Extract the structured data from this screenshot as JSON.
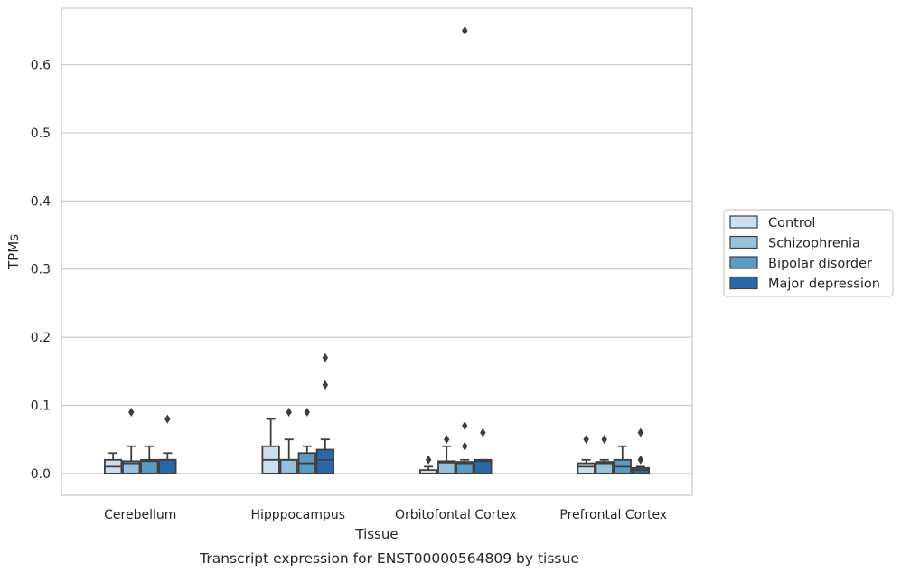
{
  "chart_data": {
    "type": "box",
    "title": "",
    "caption": "Transcript expression for ENST00000564809 by tissue",
    "xlabel": "Tissue",
    "ylabel": "TPMs",
    "ylim": [
      -0.032,
      0.683
    ],
    "yticks": [
      0.0,
      0.1,
      0.2,
      0.3,
      0.4,
      0.5,
      0.6
    ],
    "ytick_labels": [
      "0.0",
      "0.1",
      "0.2",
      "0.3",
      "0.4",
      "0.5",
      "0.6"
    ],
    "grid": "horizontal",
    "legend_position": "right",
    "categories": [
      "Cerebellum",
      "Hipppocampus",
      "Orbitofontal Cortex",
      "Prefrontal Cortex"
    ],
    "series": [
      {
        "name": "Control",
        "color": "#cddfee",
        "boxes": [
          {
            "whislo": 0.0,
            "q1": 0.0,
            "med": 0.01,
            "q3": 0.02,
            "whishi": 0.03,
            "fliers": []
          },
          {
            "whislo": 0.0,
            "q1": 0.0,
            "med": 0.02,
            "q3": 0.04,
            "whishi": 0.08,
            "fliers": []
          },
          {
            "whislo": 0.0,
            "q1": 0.0,
            "med": 0.0,
            "q3": 0.005,
            "whishi": 0.01,
            "fliers": [
              0.02
            ]
          },
          {
            "whislo": 0.0,
            "q1": 0.0,
            "med": 0.01,
            "q3": 0.015,
            "whishi": 0.02,
            "fliers": [
              0.05
            ]
          }
        ]
      },
      {
        "name": "Schizophrenia",
        "color": "#97c0dc",
        "boxes": [
          {
            "whislo": 0.0,
            "q1": 0.0,
            "med": 0.015,
            "q3": 0.018,
            "whishi": 0.04,
            "fliers": [
              0.09
            ]
          },
          {
            "whislo": 0.0,
            "q1": 0.0,
            "med": 0.02,
            "q3": 0.02,
            "whishi": 0.05,
            "fliers": [
              0.09
            ]
          },
          {
            "whislo": 0.0,
            "q1": 0.0,
            "med": 0.016,
            "q3": 0.018,
            "whishi": 0.04,
            "fliers": [
              0.05
            ]
          },
          {
            "whislo": 0.0,
            "q1": 0.0,
            "med": 0.015,
            "q3": 0.017,
            "whishi": 0.02,
            "fliers": [
              0.05
            ]
          }
        ]
      },
      {
        "name": "Bipolar disorder",
        "color": "#5a9bc6",
        "boxes": [
          {
            "whislo": 0.0,
            "q1": 0.0,
            "med": 0.018,
            "q3": 0.02,
            "whishi": 0.04,
            "fliers": []
          },
          {
            "whislo": 0.0,
            "q1": 0.0,
            "med": 0.015,
            "q3": 0.03,
            "whishi": 0.04,
            "fliers": [
              0.09
            ]
          },
          {
            "whislo": 0.0,
            "q1": 0.0,
            "med": 0.015,
            "q3": 0.017,
            "whishi": 0.02,
            "fliers": [
              0.04,
              0.07,
              0.65
            ]
          },
          {
            "whislo": 0.0,
            "q1": 0.0,
            "med": 0.01,
            "q3": 0.02,
            "whishi": 0.04,
            "fliers": []
          }
        ]
      },
      {
        "name": "Major depression",
        "color": "#2a69a9",
        "boxes": [
          {
            "whislo": 0.0,
            "q1": 0.0,
            "med": 0.02,
            "q3": 0.02,
            "whishi": 0.03,
            "fliers": [
              0.08
            ]
          },
          {
            "whislo": 0.0,
            "q1": 0.0,
            "med": 0.02,
            "q3": 0.035,
            "whishi": 0.05,
            "fliers": [
              0.13,
              0.17
            ]
          },
          {
            "whislo": 0.0,
            "q1": 0.0,
            "med": 0.018,
            "q3": 0.02,
            "whishi": 0.02,
            "fliers": [
              0.06
            ]
          },
          {
            "whislo": 0.0,
            "q1": 0.0,
            "med": 0.005,
            "q3": 0.008,
            "whishi": 0.01,
            "fliers": [
              0.02,
              0.06
            ]
          }
        ]
      }
    ]
  }
}
